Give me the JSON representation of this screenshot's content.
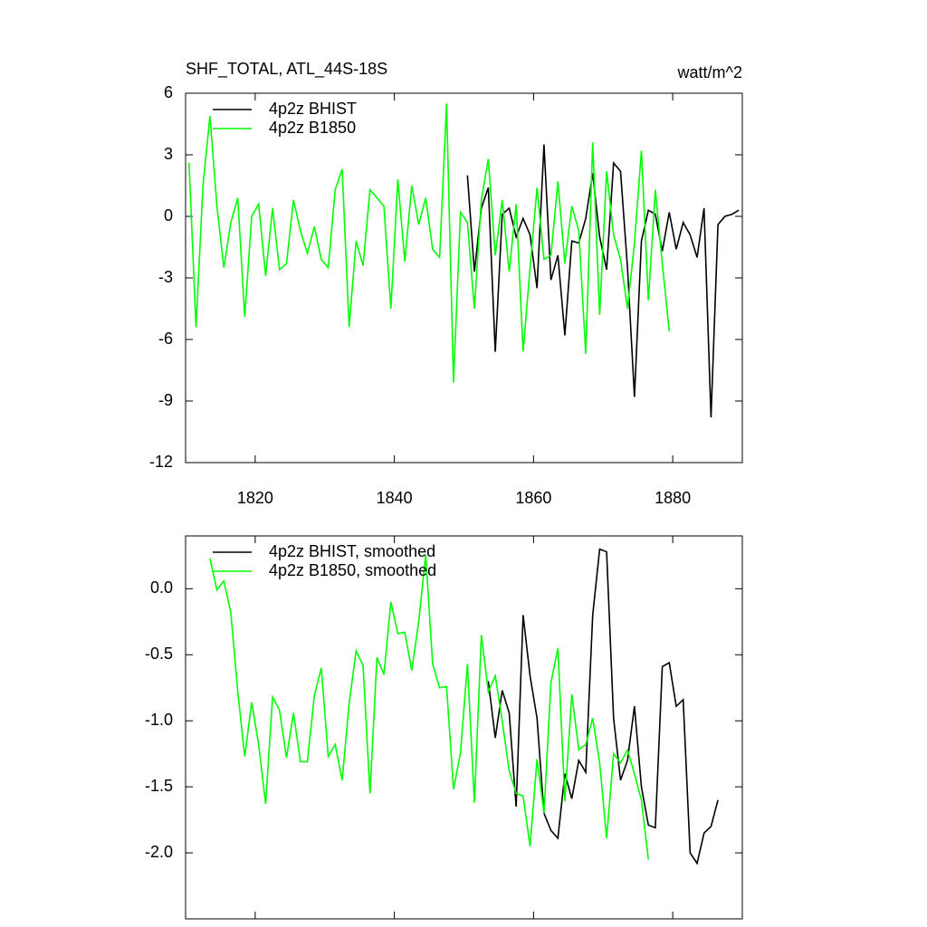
{
  "chart_data": [
    {
      "type": "line",
      "title": "SHF_TOTAL, ATL_44S-18S",
      "y_units": "watt/m^2",
      "xlim": [
        1810,
        1890
      ],
      "xticks": [
        1820,
        1840,
        1860,
        1880
      ],
      "ylim": [
        -12,
        6
      ],
      "yticks": [
        -12,
        -9,
        -6,
        -3,
        0,
        3,
        6
      ],
      "series": [
        {
          "name": "4p2z BHIST",
          "color": "#000000",
          "x": [
            1850.5,
            1851.5,
            1852.5,
            1853.5,
            1854.5,
            1855.5,
            1856.5,
            1857.5,
            1858.5,
            1859.5,
            1860.5,
            1861.5,
            1862.5,
            1863.5,
            1864.5,
            1865.5,
            1866.5,
            1867.5,
            1868.5,
            1869.5,
            1870.5,
            1871.5,
            1872.5,
            1873.5,
            1874.5,
            1875.5,
            1876.5,
            1877.5,
            1878.5,
            1879.5,
            1880.5,
            1881.5,
            1882.5,
            1883.5,
            1884.5,
            1885.5,
            1886.5,
            1887.5,
            1888.5,
            1889.5
          ],
          "values": [
            2.0,
            -2.7,
            0.4,
            1.4,
            -6.6,
            0.1,
            0.4,
            -1.0,
            -0.1,
            -0.9,
            -3.5,
            3.5,
            -3.1,
            -1.9,
            -5.8,
            -1.2,
            -1.3,
            -0.1,
            2.1,
            -1.0,
            -2.6,
            2.6,
            2.2,
            -2.5,
            -8.8,
            -1.2,
            0.3,
            0.1,
            -1.7,
            0.2,
            -1.6,
            -0.3,
            -0.9,
            -2.0,
            0.4,
            -9.8,
            -0.4,
            0.0,
            0.1,
            0.3
          ]
        },
        {
          "name": "4p2z B1850",
          "color": "#00ff00",
          "x": [
            1810.5,
            1811.5,
            1812.5,
            1813.5,
            1814.5,
            1815.5,
            1816.5,
            1817.5,
            1818.5,
            1819.5,
            1820.5,
            1821.5,
            1822.5,
            1823.5,
            1824.5,
            1825.5,
            1826.5,
            1827.5,
            1828.5,
            1829.5,
            1830.5,
            1831.5,
            1832.5,
            1833.5,
            1834.5,
            1835.5,
            1836.5,
            1837.5,
            1838.5,
            1839.5,
            1840.5,
            1841.5,
            1842.5,
            1843.5,
            1844.5,
            1845.5,
            1846.5,
            1847.5,
            1848.5,
            1849.5,
            1850.5,
            1851.5,
            1852.5,
            1853.5,
            1854.5,
            1855.5,
            1856.5,
            1857.5,
            1858.5,
            1859.5,
            1860.5,
            1861.5,
            1862.5,
            1863.5,
            1864.5,
            1865.5,
            1866.5,
            1867.5,
            1868.5,
            1869.5,
            1870.5,
            1871.5,
            1872.5,
            1873.5,
            1874.5,
            1875.5,
            1876.5,
            1877.5,
            1878.5,
            1879.5
          ],
          "values": [
            2.6,
            -5.4,
            1.5,
            4.9,
            0.5,
            -2.5,
            -0.3,
            0.9,
            -4.9,
            0.0,
            0.6,
            -2.9,
            0.4,
            -2.6,
            -2.3,
            0.8,
            -0.7,
            -1.8,
            -0.5,
            -2.1,
            -2.5,
            1.3,
            2.3,
            -5.4,
            -1.2,
            -2.4,
            1.3,
            0.9,
            0.5,
            -4.5,
            1.8,
            -2.2,
            1.5,
            -0.4,
            0.9,
            -1.6,
            -2.0,
            5.5,
            -8.1,
            0.2,
            -0.3,
            -4.5,
            0.8,
            2.8,
            -1.9,
            0.8,
            -2.7,
            0.6,
            -6.6,
            -2.5,
            1.4,
            -2.1,
            -1.9,
            1.7,
            -2.3,
            0.5,
            -0.7,
            -6.7,
            3.6,
            -4.8,
            2.2,
            -0.9,
            -2.1,
            -4.5,
            -1.3,
            3.2,
            -4.1,
            1.3,
            -2.3,
            -5.6
          ]
        }
      ]
    },
    {
      "type": "line",
      "xlim": [
        1810,
        1890
      ],
      "xticks": [
        1820,
        1840,
        1860,
        1880
      ],
      "ylim": [
        -2.5,
        0.4
      ],
      "yticks": [
        {
          "value": -2,
          "label": "-2.0"
        },
        -1.5,
        {
          "value": -1,
          "label": "-1.0"
        },
        -0.5,
        {
          "value": 0,
          "label": "0.0"
        }
      ],
      "series": [
        {
          "name": "4p2z BHIST, smoothed",
          "color": "#000000",
          "x": [
            1853.5,
            1854.5,
            1855.5,
            1856.5,
            1857.5,
            1858.5,
            1859.5,
            1860.5,
            1861.5,
            1862.5,
            1863.5,
            1864.5,
            1865.5,
            1866.5,
            1867.5,
            1868.5,
            1869.5,
            1870.5,
            1871.5,
            1872.5,
            1873.5,
            1874.5,
            1875.5,
            1876.5,
            1877.5,
            1878.5,
            1879.5,
            1880.5,
            1881.5,
            1882.5,
            1883.5,
            1884.5,
            1885.5,
            1886.5
          ],
          "values": [
            -0.7,
            -1.13,
            -0.77,
            -0.94,
            -1.65,
            -0.2,
            -0.66,
            -0.98,
            -1.7,
            -1.83,
            -1.89,
            -1.4,
            -1.59,
            -1.3,
            -1.39,
            -0.2,
            0.3,
            0.28,
            -0.98,
            -1.45,
            -1.3,
            -0.89,
            -1.5,
            -1.79,
            -1.81,
            -0.59,
            -0.56,
            -0.89,
            -0.84,
            -2.0,
            -2.08,
            -1.85,
            -1.8,
            -1.6
          ]
        },
        {
          "name": "4p2z B1850, smoothed",
          "color": "#00ff00",
          "x": [
            1813.5,
            1814.5,
            1815.5,
            1816.5,
            1817.5,
            1818.5,
            1819.5,
            1820.5,
            1821.5,
            1822.5,
            1823.5,
            1824.5,
            1825.5,
            1826.5,
            1827.5,
            1828.5,
            1829.5,
            1830.5,
            1831.5,
            1832.5,
            1833.5,
            1834.5,
            1835.5,
            1836.5,
            1837.5,
            1838.5,
            1839.5,
            1840.5,
            1841.5,
            1842.5,
            1843.5,
            1844.5,
            1845.5,
            1846.5,
            1847.5,
            1848.5,
            1849.5,
            1850.5,
            1851.5,
            1852.5,
            1853.5,
            1854.5,
            1855.5,
            1856.5,
            1857.5,
            1858.5,
            1859.5,
            1860.5,
            1861.5,
            1862.5,
            1863.5,
            1864.5,
            1865.5,
            1866.5,
            1867.5,
            1868.5,
            1869.5,
            1870.5,
            1871.5,
            1872.5,
            1873.5,
            1874.5,
            1875.5,
            1876.5
          ],
          "values": [
            0.23,
            -0.01,
            0.06,
            -0.18,
            -0.78,
            -1.27,
            -0.86,
            -1.18,
            -1.63,
            -0.82,
            -0.92,
            -1.28,
            -0.94,
            -1.31,
            -1.31,
            -0.81,
            -0.6,
            -1.27,
            -1.18,
            -1.45,
            -0.87,
            -0.47,
            -0.58,
            -1.55,
            -0.52,
            -0.65,
            -0.1,
            -0.34,
            -0.33,
            -0.62,
            -0.25,
            0.26,
            -0.57,
            -0.75,
            -0.74,
            -1.52,
            -1.24,
            -0.57,
            -1.62,
            -0.35,
            -0.78,
            -0.66,
            -1.0,
            -1.38,
            -1.55,
            -1.57,
            -1.95,
            -1.29,
            -1.7,
            -0.71,
            -0.45,
            -1.61,
            -0.8,
            -1.22,
            -1.18,
            -0.98,
            -1.32,
            -1.89,
            -1.25,
            -1.32,
            -1.22,
            -1.4,
            -1.6,
            -2.05
          ]
        }
      ]
    }
  ]
}
